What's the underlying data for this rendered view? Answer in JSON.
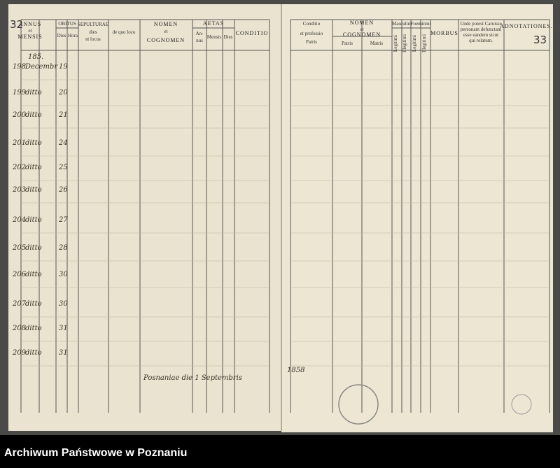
{
  "left_page": {
    "page_number": "32",
    "headers": [
      "ANNUS",
      "et",
      "MENSIS",
      "OBITUS",
      "Dies",
      "Hora",
      "SEPULTURAE",
      "dies",
      "et locus",
      "de quo loco",
      "NOMEN",
      "et",
      "COGNOMEN",
      "AETAS",
      "An-",
      "nus",
      "Mensis",
      "Dies",
      "CONDITIO"
    ],
    "year": "185.",
    "rows": [
      {
        "number": "198",
        "month": "Decembr",
        "day": "19"
      },
      {
        "number": "199",
        "month": "ditto",
        "day": "20"
      },
      {
        "number": "200",
        "month": "ditto",
        "day": "21"
      },
      {
        "number": "201",
        "month": "ditto",
        "day": "24"
      },
      {
        "number": "202",
        "month": "ditto",
        "day": "25"
      },
      {
        "number": "203",
        "month": "ditto",
        "day": "26"
      },
      {
        "number": "204",
        "month": "ditto",
        "day": "27"
      },
      {
        "number": "205",
        "month": "ditto",
        "day": "28"
      },
      {
        "number": "206",
        "month": "ditto",
        "day": "30"
      },
      {
        "number": "207",
        "month": "ditto",
        "day": "30"
      },
      {
        "number": "208",
        "month": "ditto",
        "day": "31"
      },
      {
        "number": "209",
        "month": "ditto",
        "day": "31"
      }
    ],
    "closing": "Posnaniae die 1 Septembris"
  },
  "right_page": {
    "page_number": "33",
    "headers": [
      "Conditio",
      "et professio",
      "Patris",
      "NOMEN",
      "et",
      "COGNOMEN",
      "Patris",
      "Matris",
      "Masculini",
      "Foeminini",
      "Legitimi",
      "Illegitimi",
      "Legitimi",
      "Illegitimi",
      "MORBUS",
      "Unde potest Caruisse",
      "personam defunctam",
      "esse eandem sicut",
      "qui relatum.",
      "ADNOTATIONES."
    ],
    "year": "1858"
  },
  "footer": "Archiwum Państwowe w Poznaniu"
}
